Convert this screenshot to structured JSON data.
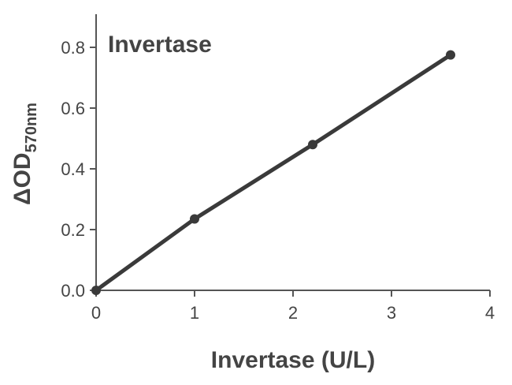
{
  "chart_data": {
    "type": "line",
    "title": "Invertase",
    "xlabel": "Invertase (U/L)",
    "ylabel_main": "ΔOD",
    "ylabel_sub": "570nm",
    "xlim": [
      0,
      4
    ],
    "ylim": [
      0,
      0.9
    ],
    "xticks": [
      "0",
      "1",
      "2",
      "3",
      "4"
    ],
    "yticks": [
      "0.0",
      "0.2",
      "0.4",
      "0.6",
      "0.8"
    ],
    "grid": false,
    "series": [
      {
        "points": [
          {
            "x": 0,
            "y": 0.0
          },
          {
            "x": 1.0,
            "y": 0.235
          },
          {
            "x": 2.2,
            "y": 0.48
          },
          {
            "x": 3.6,
            "y": 0.775
          }
        ]
      }
    ],
    "colors": {
      "series": "#3a3a3a",
      "axis": "#555555",
      "text": "#444444"
    }
  }
}
